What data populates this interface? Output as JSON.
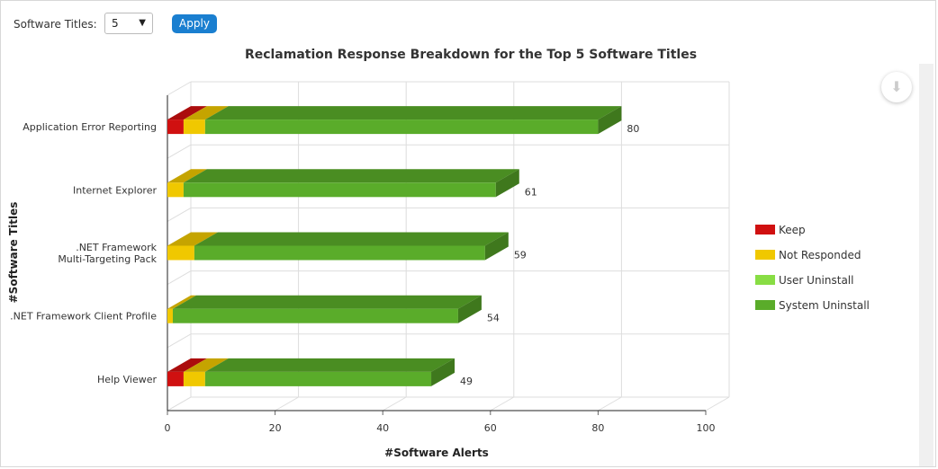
{
  "controls": {
    "software_titles_label": "Software Titles:",
    "software_titles_value": "5",
    "apply_label": "Apply"
  },
  "chart_data": {
    "type": "bar",
    "orientation": "horizontal",
    "stacked": true,
    "three_d": true,
    "title": "Reclamation Response Breakdown for the Top 5 Software Titles",
    "xlabel": "#Software Alerts",
    "ylabel": "#Software Titles",
    "xlim": [
      0,
      100
    ],
    "xticks": [
      "0",
      "20",
      "40",
      "60",
      "80",
      "100"
    ],
    "grid": true,
    "legend_position": "right",
    "categories": [
      "Application Error Reporting",
      "Internet Explorer",
      ".NET Framework Multi-Targeting Pack",
      ".NET Framework Client Profile",
      "Help Viewer"
    ],
    "series": [
      {
        "name": "Keep",
        "color": "#d01010",
        "values": [
          3,
          0,
          0,
          0,
          3
        ]
      },
      {
        "name": "Not Responded",
        "color": "#f0c800",
        "values": [
          4,
          3,
          5,
          1,
          4
        ]
      },
      {
        "name": "User Uninstall",
        "color": "#88dd44",
        "values": [
          0,
          0,
          0,
          0,
          0
        ]
      },
      {
        "name": "System Uninstall",
        "color": "#5aac2a",
        "values": [
          73,
          58,
          54,
          53,
          42
        ]
      }
    ],
    "totals": [
      "80",
      "61",
      "59",
      "54",
      "49"
    ]
  }
}
